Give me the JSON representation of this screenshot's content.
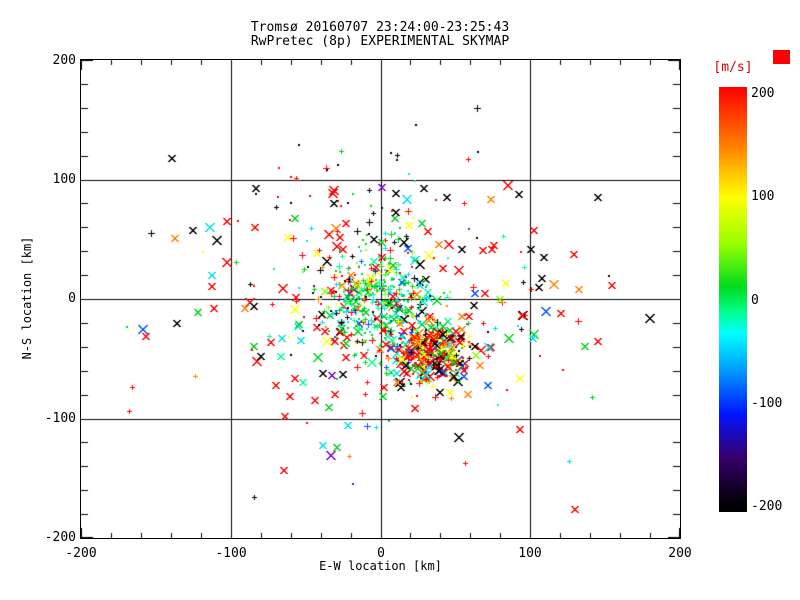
{
  "title": {
    "line1": "Tromsø 20160707 23:24:00-23:25:43",
    "line2": "RwPretec (8p) EXPERIMENTAL SKYMAP"
  },
  "axes": {
    "xlabel": "E-W location [km]",
    "ylabel": "N-S location [km]",
    "x_tick_labels": [
      "-200",
      "-100",
      "0",
      "100",
      "200"
    ],
    "y_tick_labels": [
      "200",
      "100",
      "0",
      "-100",
      "-200"
    ]
  },
  "colorbar": {
    "label": "[m/s]",
    "label_color": "#e00000",
    "tick_labels": [
      "200",
      "100",
      "0",
      "-100",
      "-200"
    ],
    "gradient_stops": [
      [
        0.0,
        "#ff0000"
      ],
      [
        0.13,
        "#ff7800"
      ],
      [
        0.26,
        "#ffff00"
      ],
      [
        0.37,
        "#96ff00"
      ],
      [
        0.47,
        "#00dc1e"
      ],
      [
        0.53,
        "#00ff8c"
      ],
      [
        0.58,
        "#00ffff"
      ],
      [
        0.67,
        "#0096ff"
      ],
      [
        0.77,
        "#0014ff"
      ],
      [
        0.87,
        "#38006e"
      ],
      [
        0.985,
        "#000000"
      ],
      [
        1.0,
        "#000000"
      ]
    ]
  },
  "decor": {
    "corner_patch_color": "#ff0000"
  },
  "chart_data": {
    "type": "scatter",
    "title": "Tromsø 20160707 23:24:00-23:25:43 / RwPretec (8p) EXPERIMENTAL SKYMAP",
    "xlabel": "E-W location [km]",
    "ylabel": "N-S location [km]",
    "xlim": [
      -200,
      200
    ],
    "ylim": [
      -200,
      200
    ],
    "x_major_ticks": [
      -200,
      -100,
      0,
      100,
      200
    ],
    "y_major_ticks": [
      -200,
      -100,
      0,
      100,
      200
    ],
    "minor_tick_step_km": 20,
    "gridline_values_km": [
      -100,
      0,
      100
    ],
    "grid": true,
    "colorbar_units": "m/s",
    "colorbar_range": [
      -200,
      200
    ],
    "palette": {
      "red": "#ff0000",
      "orange": "#ff8000",
      "yellow": "#ffff00",
      "chartreuse": "#8cff00",
      "green": "#00d21e",
      "spring": "#00ff96",
      "cyan": "#00e0e8",
      "blue": "#0055ff",
      "darkblue": "#1c1cc8",
      "purple": "#7a00cc",
      "black": "#000000"
    },
    "marker_types": [
      "cross",
      "plus",
      "dot"
    ],
    "seed": 20160707,
    "point_clusters": [
      {
        "name": "wide-halo",
        "center_km": [
          4,
          -14
        ],
        "sigma_km": [
          72,
          56
        ],
        "count": 275,
        "marker_weights": {
          "cross": 0.63,
          "plus": 0.22,
          "dot": 0.15
        },
        "color_weights": {
          "red": 0.43,
          "black": 0.16,
          "cyan": 0.08,
          "green": 0.08,
          "orange": 0.07,
          "yellow": 0.05,
          "spring": 0.04,
          "blue": 0.05,
          "purple": 0.02,
          "chartreuse": 0.02
        }
      },
      {
        "name": "north-scatter",
        "center_km": [
          -30,
          82
        ],
        "sigma_km": [
          52,
          28
        ],
        "count": 55,
        "marker_weights": {
          "dot": 0.5,
          "plus": 0.3,
          "cross": 0.2
        },
        "color_weights": {
          "black": 0.44,
          "red": 0.3,
          "green": 0.08,
          "cyan": 0.06,
          "orange": 0.05,
          "blue": 0.04,
          "yellow": 0.03
        }
      },
      {
        "name": "central-near-zero-velocity",
        "center_km": [
          -2,
          3
        ],
        "sigma_km": [
          20,
          23
        ],
        "count": 380,
        "marker_weights": {
          "dot": 0.5,
          "plus": 0.4,
          "cross": 0.1
        },
        "color_weights": {
          "green": 0.3,
          "spring": 0.18,
          "cyan": 0.15,
          "chartreuse": 0.08,
          "yellow": 0.04,
          "orange": 0.03,
          "red": 0.09,
          "black": 0.07,
          "blue": 0.04,
          "darkblue": 0.02
        }
      },
      {
        "name": "southeast-fast-cluster",
        "center_km": [
          31,
          -46
        ],
        "sigma_km": [
          14,
          13
        ],
        "count": 270,
        "marker_weights": {
          "cross": 0.45,
          "plus": 0.35,
          "dot": 0.2
        },
        "color_weights": {
          "red": 0.4,
          "orange": 0.13,
          "yellow": 0.08,
          "green": 0.1,
          "chartreuse": 0.05,
          "black": 0.1,
          "cyan": 0.05,
          "spring": 0.04,
          "blue": 0.05
        }
      }
    ]
  }
}
